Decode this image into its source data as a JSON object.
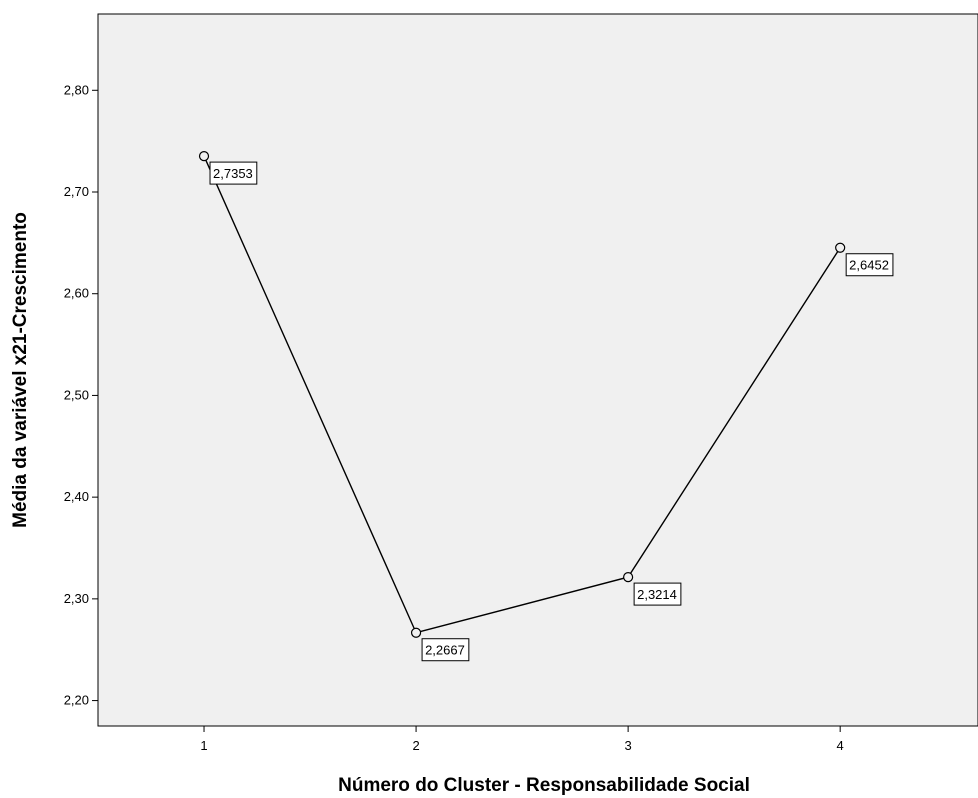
{
  "chart_data": {
    "type": "line",
    "xlabel": "Número do Cluster - Responsabilidade Social",
    "ylabel": "Média da variável x21-Crescimento",
    "ylim": [
      2.175,
      2.875
    ],
    "xlim": [
      0.5,
      4.65
    ],
    "yticks": [
      2.2,
      2.3,
      2.4,
      2.5,
      2.6,
      2.7,
      2.8
    ],
    "ytick_labels": [
      "2,20",
      "2,30",
      "2,40",
      "2,50",
      "2,60",
      "2,70",
      "2,80"
    ],
    "xticks": [
      1,
      2,
      3,
      4
    ],
    "xtick_labels": [
      "1",
      "2",
      "3",
      "4"
    ],
    "grid": false,
    "colors": {
      "plot_background": "#f0f0f0",
      "line": "#000000",
      "marker_fill": "#f0f0f0"
    },
    "series": [
      {
        "x": [
          1,
          2,
          3,
          4
        ],
        "values": [
          2.7353,
          2.2667,
          2.3214,
          2.6452
        ],
        "data_labels": [
          "2,7353",
          "2,2667",
          "2,3214",
          "2,6452"
        ]
      }
    ]
  }
}
